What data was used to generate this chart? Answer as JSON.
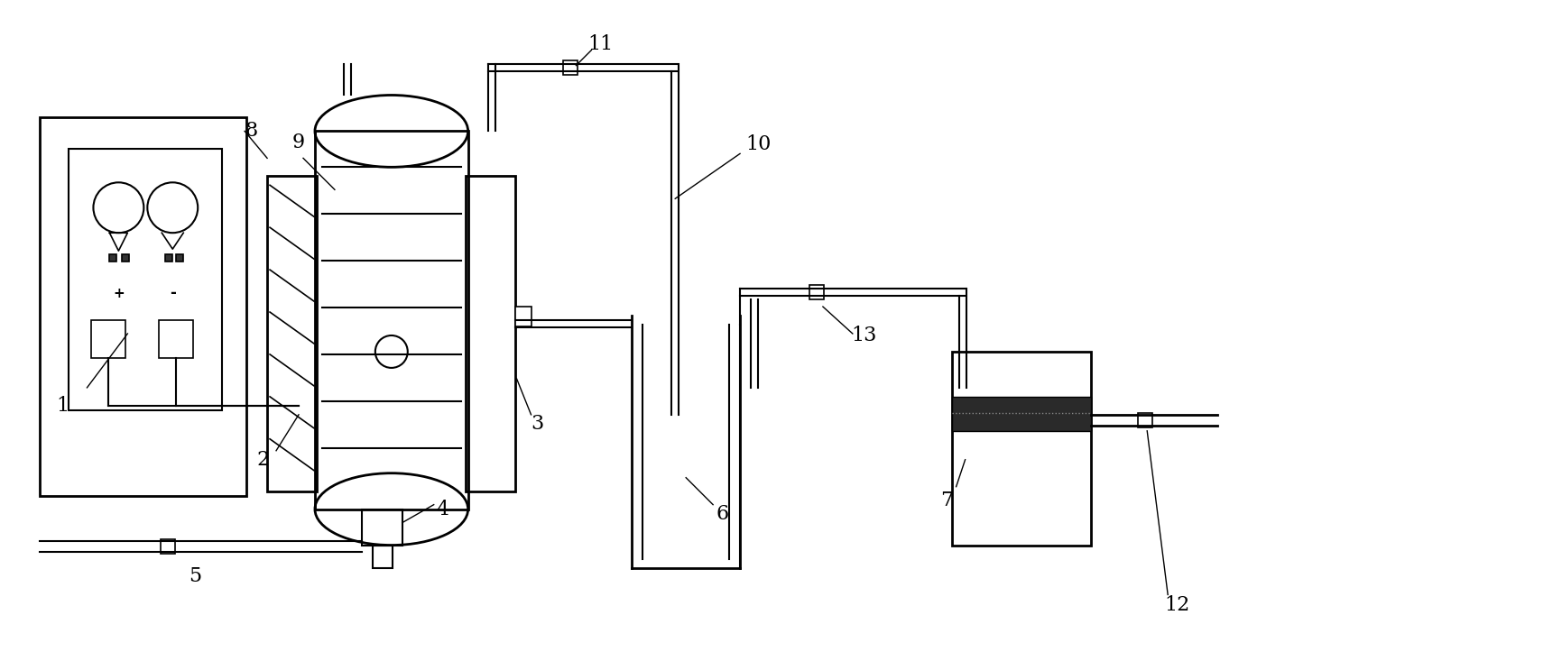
{
  "bg_color": "#ffffff",
  "line_color": "#000000",
  "label_color": "#000000",
  "fig_width": 17.21,
  "fig_height": 7.33
}
